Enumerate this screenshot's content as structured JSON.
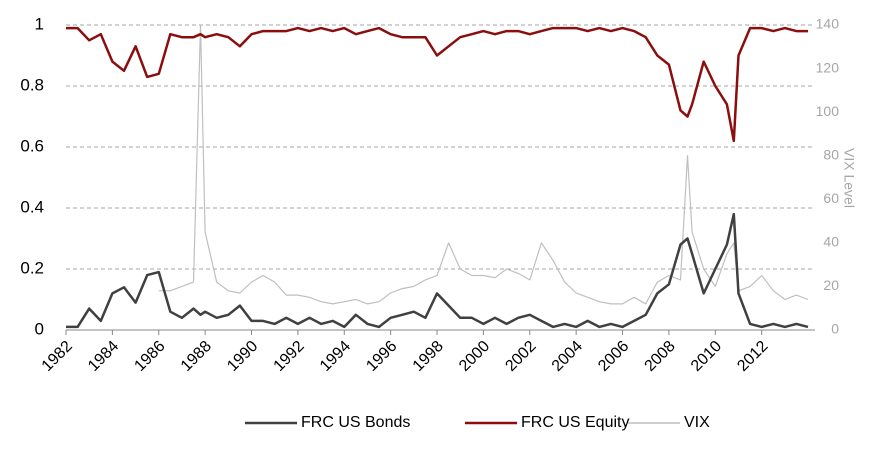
{
  "chart_data": {
    "type": "line",
    "x": [
      1982,
      1982.5,
      1983,
      1983.5,
      1984,
      1984.5,
      1985,
      1985.5,
      1986,
      1986.5,
      1987,
      1987.5,
      1987.8,
      1988,
      1988.5,
      1989,
      1989.5,
      1990,
      1990.5,
      1991,
      1991.5,
      1992,
      1992.5,
      1993,
      1993.5,
      1994,
      1994.5,
      1995,
      1995.5,
      1996,
      1996.5,
      1997,
      1997.5,
      1998,
      1998.5,
      1999,
      1999.5,
      2000,
      2000.5,
      2001,
      2001.5,
      2002,
      2002.5,
      2003,
      2003.5,
      2004,
      2004.5,
      2005,
      2005.5,
      2006,
      2006.5,
      2007,
      2007.5,
      2008,
      2008.5,
      2008.8,
      2009,
      2009.5,
      2010,
      2010.5,
      2010.8,
      2011,
      2011.5,
      2012,
      2012.5,
      2013,
      2013.5,
      2014
    ],
    "series": [
      {
        "name": "FRC US Bonds",
        "color": "#404040",
        "axis": "y",
        "values": [
          0.01,
          0.01,
          0.07,
          0.03,
          0.12,
          0.14,
          0.09,
          0.18,
          0.19,
          0.06,
          0.04,
          0.07,
          0.05,
          0.06,
          0.04,
          0.05,
          0.08,
          0.03,
          0.03,
          0.02,
          0.04,
          0.02,
          0.04,
          0.02,
          0.03,
          0.01,
          0.05,
          0.02,
          0.01,
          0.04,
          0.05,
          0.06,
          0.04,
          0.12,
          0.08,
          0.04,
          0.04,
          0.02,
          0.04,
          0.02,
          0.04,
          0.05,
          0.03,
          0.01,
          0.02,
          0.01,
          0.03,
          0.01,
          0.02,
          0.01,
          0.03,
          0.05,
          0.12,
          0.15,
          0.28,
          0.3,
          0.25,
          0.12,
          0.2,
          0.28,
          0.38,
          0.12,
          0.02,
          0.01,
          0.02,
          0.01,
          0.02,
          0.01
        ]
      },
      {
        "name": "FRC US Equity",
        "color": "#8b0e0e",
        "axis": "y",
        "values": [
          0.99,
          0.99,
          0.95,
          0.97,
          0.88,
          0.85,
          0.93,
          0.83,
          0.84,
          0.97,
          0.96,
          0.96,
          0.97,
          0.96,
          0.97,
          0.96,
          0.93,
          0.97,
          0.98,
          0.98,
          0.98,
          0.99,
          0.98,
          0.99,
          0.98,
          0.99,
          0.97,
          0.98,
          0.99,
          0.97,
          0.96,
          0.96,
          0.96,
          0.9,
          0.93,
          0.96,
          0.97,
          0.98,
          0.97,
          0.98,
          0.98,
          0.97,
          0.98,
          0.99,
          0.99,
          0.99,
          0.98,
          0.99,
          0.98,
          0.99,
          0.98,
          0.96,
          0.9,
          0.87,
          0.72,
          0.7,
          0.74,
          0.88,
          0.8,
          0.74,
          0.62,
          0.9,
          0.99,
          0.99,
          0.98,
          0.99,
          0.98,
          0.98
        ]
      },
      {
        "name": "VIX",
        "color": "#bfbfbf",
        "axis": "y2",
        "values": [
          null,
          null,
          null,
          null,
          null,
          null,
          null,
          null,
          18,
          18,
          20,
          22,
          140,
          45,
          22,
          18,
          17,
          22,
          25,
          22,
          16,
          16,
          15,
          13,
          12,
          13,
          14,
          12,
          13,
          17,
          19,
          20,
          23,
          25,
          40,
          28,
          25,
          25,
          24,
          28,
          26,
          23,
          40,
          32,
          22,
          17,
          15,
          13,
          12,
          12,
          15,
          12,
          22,
          25,
          23,
          80,
          45,
          28,
          20,
          35,
          40,
          18,
          20,
          25,
          18,
          14,
          16,
          14
        ]
      }
    ],
    "y2label": "VIX Level",
    "xlim": [
      1982,
      2014.3
    ],
    "xticks": [
      1982,
      1984,
      1986,
      1988,
      1990,
      1992,
      1994,
      1996,
      1998,
      2000,
      2002,
      2004,
      2006,
      2008,
      2010,
      2012
    ],
    "ylim": [
      0,
      1
    ],
    "yticks": [
      0,
      0.2,
      0.4,
      0.6,
      0.8,
      1
    ],
    "y2lim": [
      0,
      140
    ],
    "y2ticks": [
      0,
      20,
      40,
      60,
      80,
      100,
      120,
      140
    ],
    "grid": true,
    "legend": "bottom"
  }
}
